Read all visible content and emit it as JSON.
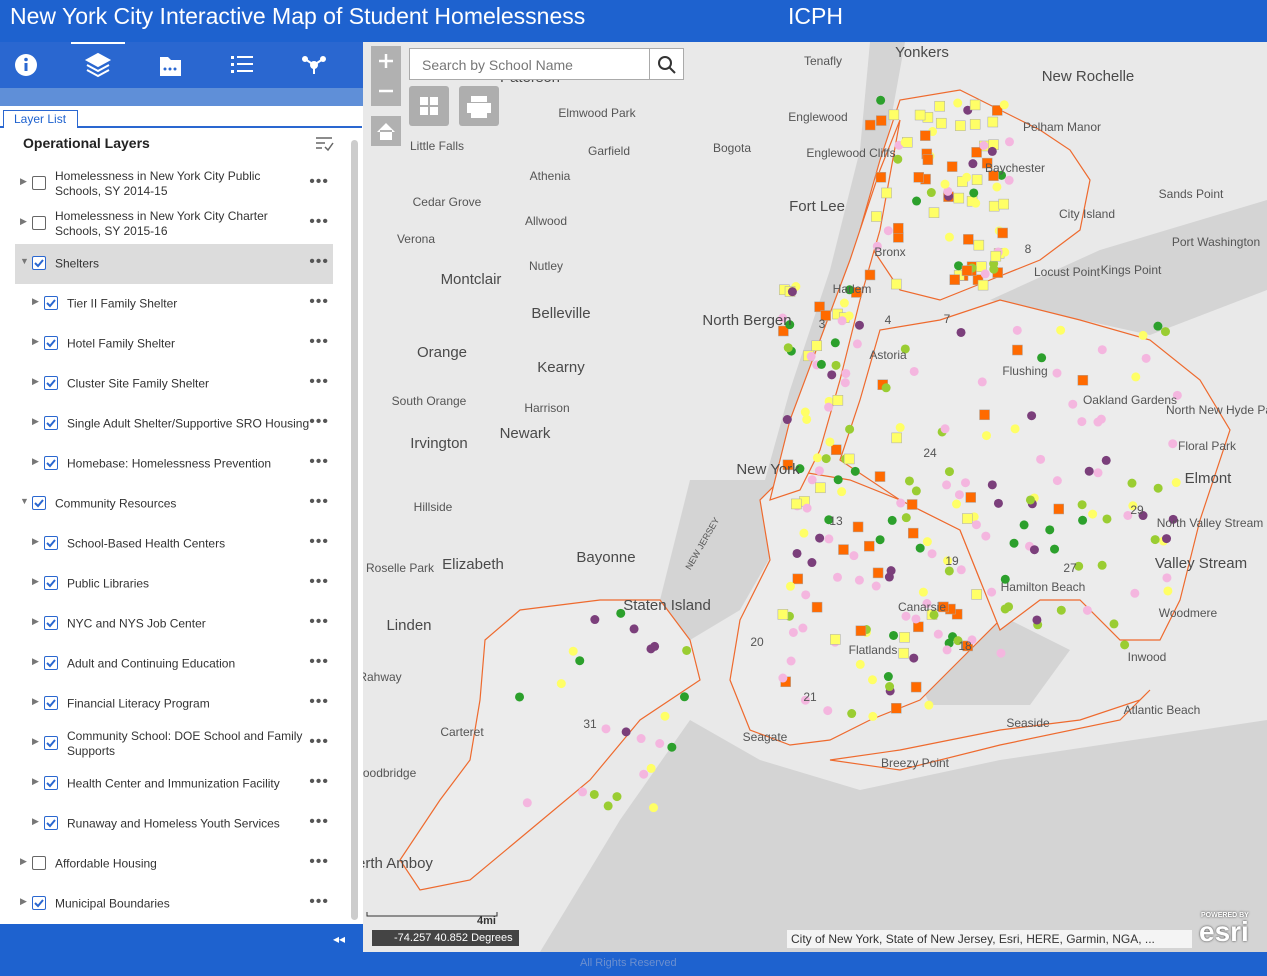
{
  "header": {
    "title": "New York City Interactive Map of Student Homelessness",
    "org": "ICPH"
  },
  "panel": {
    "tab": "Layer List",
    "heading": "Operational Layers",
    "layers": [
      {
        "name": "Homelessness in New York City Public Schools, SY 2014-15",
        "checked": false,
        "level": 0,
        "expanded": false
      },
      {
        "name": "Homelessness in New York City Charter Schools, SY 2015-16",
        "checked": false,
        "level": 0,
        "expanded": false
      },
      {
        "name": "Shelters",
        "checked": true,
        "level": 0,
        "expanded": true,
        "selected": true
      },
      {
        "name": "Tier II Family Shelter",
        "checked": true,
        "level": 1,
        "expanded": false
      },
      {
        "name": "Hotel Family Shelter",
        "checked": true,
        "level": 1,
        "expanded": false
      },
      {
        "name": "Cluster Site Family Shelter",
        "checked": true,
        "level": 1,
        "expanded": false
      },
      {
        "name": "Single Adult Shelter/Supportive SRO Housing",
        "checked": true,
        "level": 1,
        "expanded": false
      },
      {
        "name": "Homebase: Homelessness Prevention",
        "checked": true,
        "level": 1,
        "expanded": false
      },
      {
        "name": "Community Resources",
        "checked": true,
        "level": 0,
        "expanded": true
      },
      {
        "name": "School-Based Health Centers",
        "checked": true,
        "level": 1,
        "expanded": false
      },
      {
        "name": "Public Libraries",
        "checked": true,
        "level": 1,
        "expanded": false
      },
      {
        "name": "NYC and NYS Job Center",
        "checked": true,
        "level": 1,
        "expanded": false
      },
      {
        "name": "Adult and Continuing Education",
        "checked": true,
        "level": 1,
        "expanded": false
      },
      {
        "name": "Financial Literacy Program",
        "checked": true,
        "level": 1,
        "expanded": false
      },
      {
        "name": "Community School: DOE School and Family Supports",
        "checked": true,
        "level": 1,
        "expanded": false
      },
      {
        "name": "Health Center and Immunization Facility",
        "checked": true,
        "level": 1,
        "expanded": false
      },
      {
        "name": "Runaway and Homeless Youth Services",
        "checked": true,
        "level": 1,
        "expanded": false
      },
      {
        "name": "Affordable Housing",
        "checked": false,
        "level": 0,
        "expanded": false
      },
      {
        "name": "Municipal Boundaries",
        "checked": true,
        "level": 0,
        "expanded": false
      }
    ]
  },
  "map": {
    "search_placeholder": "Search by School Name",
    "labels": [
      "Yonkers",
      "Tenafly",
      "New Rochelle",
      "Paterson",
      "Elmwood Park",
      "Englewood",
      "Pelham Manor",
      "Little Falls",
      "Garfield",
      "Bogota",
      "Englewood Cliffs",
      "Baychester",
      "Athenia",
      "Sands Point",
      "Fort Lee",
      "Cedar Grove",
      "City Island",
      "Allwood",
      "Verona",
      "Port Washington",
      "Nutley",
      "Bronx",
      "Locust Point",
      "Kings Point",
      "Montclair",
      "Harlem",
      "North Bergen",
      "Belleville",
      "Orange",
      "Astoria",
      "Kearny",
      "Flushing",
      "South Orange",
      "Harrison",
      "Oakland Gardens",
      "North New Hyde Park",
      "Newark",
      "Irvington",
      "Floral Park",
      "New York",
      "Elmont",
      "Hillside",
      "North Valley Stream",
      "Roselle Park",
      "Elizabeth",
      "Bayonne",
      "Valley Stream",
      "Hamilton Beach",
      "Staten Island",
      "Canarsie",
      "Woodmere",
      "Linden",
      "Flatlands",
      "Inwood",
      "Rahway",
      "Atlantic Beach",
      "Carteret",
      "Seaside",
      "Seagate",
      "Breezy Point",
      "Woodbridge",
      "Perth Amboy",
      "NEW JERSEY",
      "7",
      "8",
      "24",
      "29",
      "27",
      "18",
      "20",
      "21",
      "31",
      "19",
      "3",
      "4",
      "13"
    ],
    "coordinates": "-74.257 40.852 Degrees",
    "scale": "4mi",
    "attribution": "City of New York, State of New Jersey, Esri, HERE, Garmin, NGA, ...",
    "powered_by": "POWERED BY",
    "logo": "esri"
  },
  "footer": {
    "rights": "All Rights Reserved"
  }
}
